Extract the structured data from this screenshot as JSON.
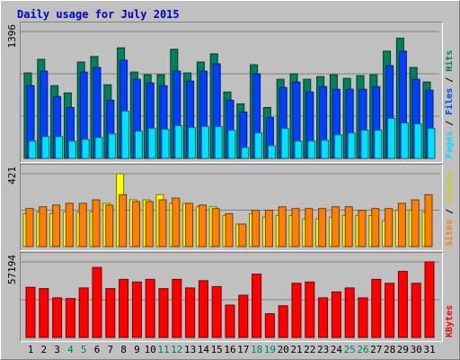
{
  "title": "Daily usage for July 2015",
  "colors": {
    "title": "#0000cc",
    "hits": "#00805c",
    "files": "#0040ff",
    "pages": "#00e0ff",
    "visits": "#ffff00",
    "sites": "#ff8000",
    "kbytes": "#ff0000",
    "weekend_day": "#00805c",
    "weekday": "#000000"
  },
  "chart_data": [
    {
      "type": "bar",
      "title": "Daily usage for July 2015",
      "categories": [
        "1",
        "2",
        "3",
        "4",
        "5",
        "6",
        "7",
        "8",
        "9",
        "10",
        "11",
        "12",
        "13",
        "14",
        "15",
        "16",
        "17",
        "18",
        "19",
        "20",
        "21",
        "22",
        "23",
        "24",
        "25",
        "26",
        "27",
        "28",
        "29",
        "30",
        "31"
      ],
      "weekend_days": [
        "4",
        "5",
        "11",
        "12",
        "18",
        "19",
        "25",
        "26"
      ],
      "ylim": [
        0,
        1396
      ],
      "ytick_label": "1396",
      "legend": [
        "Hits",
        "Files",
        "Pages"
      ],
      "series": [
        {
          "name": "Hits",
          "values": [
            940,
            1090,
            800,
            720,
            1060,
            1120,
            810,
            1216,
            950,
            920,
            920,
            1200,
            940,
            1060,
            1150,
            730,
            600,
            1030,
            560,
            870,
            930,
            870,
            900,
            920,
            880,
            910,
            920,
            1180,
            1323,
            1000,
            840
          ]
        },
        {
          "name": "Files",
          "values": [
            800,
            960,
            680,
            560,
            950,
            1000,
            640,
            1080,
            870,
            830,
            800,
            960,
            850,
            960,
            1040,
            640,
            510,
            930,
            450,
            780,
            840,
            730,
            790,
            760,
            760,
            760,
            790,
            1020,
            1180,
            870,
            750
          ]
        },
        {
          "name": "Pages",
          "values": [
            190,
            240,
            240,
            190,
            210,
            230,
            270,
            520,
            300,
            330,
            320,
            360,
            340,
            350,
            350,
            310,
            120,
            280,
            140,
            330,
            190,
            190,
            200,
            260,
            280,
            310,
            310,
            440,
            390,
            380,
            330
          ]
        }
      ]
    },
    {
      "type": "bar",
      "categories": [
        "1",
        "2",
        "3",
        "4",
        "5",
        "6",
        "7",
        "8",
        "9",
        "10",
        "11",
        "12",
        "13",
        "14",
        "15",
        "16",
        "17",
        "18",
        "19",
        "20",
        "21",
        "22",
        "23",
        "24",
        "25",
        "26",
        "27",
        "28",
        "29",
        "30",
        "31"
      ],
      "ylim": [
        0,
        421
      ],
      "ytick_label": "421",
      "legend": [
        "Sites",
        "Visits"
      ],
      "series": [
        {
          "name": "Visits",
          "values": [
            190,
            200,
            190,
            200,
            200,
            200,
            250,
            421,
            270,
            270,
            300,
            250,
            250,
            230,
            230,
            180,
            130,
            190,
            170,
            180,
            180,
            160,
            160,
            170,
            180,
            180,
            180,
            150,
            210,
            210,
            200
          ]
        },
        {
          "name": "Sites",
          "values": [
            220,
            230,
            240,
            250,
            250,
            270,
            240,
            300,
            260,
            260,
            270,
            280,
            250,
            240,
            220,
            190,
            130,
            210,
            210,
            230,
            220,
            220,
            220,
            230,
            230,
            210,
            220,
            220,
            250,
            270,
            300
          ]
        }
      ]
    },
    {
      "type": "bar",
      "categories": [
        "1",
        "2",
        "3",
        "4",
        "5",
        "6",
        "7",
        "8",
        "9",
        "10",
        "11",
        "12",
        "13",
        "14",
        "15",
        "16",
        "17",
        "18",
        "19",
        "20",
        "21",
        "22",
        "23",
        "24",
        "25",
        "26",
        "27",
        "28",
        "29",
        "30",
        "31"
      ],
      "ylim": [
        0,
        57194
      ],
      "ytick_label": "57194",
      "legend": [
        "KBytes"
      ],
      "series": [
        {
          "name": "KBytes",
          "values": [
            38000,
            37000,
            30000,
            29500,
            37500,
            53000,
            37000,
            44000,
            42000,
            44000,
            37000,
            44000,
            37500,
            43000,
            38500,
            24500,
            32000,
            48000,
            18000,
            24000,
            41000,
            42000,
            30000,
            34500,
            37500,
            30000,
            44000,
            41000,
            50000,
            41000,
            57194
          ]
        }
      ]
    }
  ]
}
